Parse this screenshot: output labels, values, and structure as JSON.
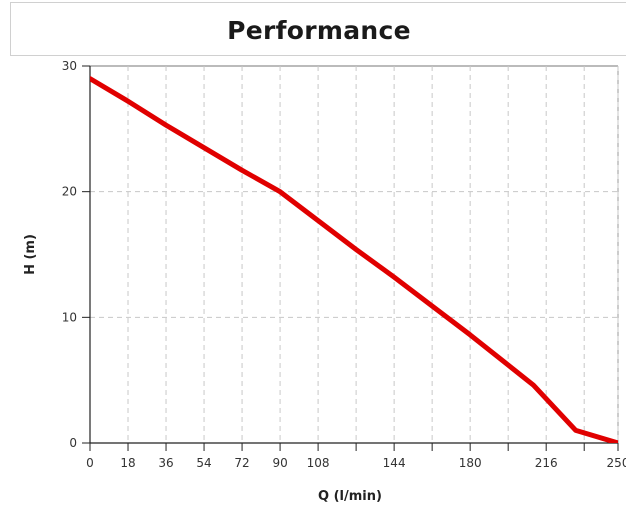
{
  "chart_data": {
    "type": "line",
    "title": "Performance",
    "xlabel": "Q (l/min)",
    "ylabel": "H (m)",
    "xlim": [
      0,
      250
    ],
    "ylim": [
      0,
      30
    ],
    "x_ticks": [
      0,
      18,
      36,
      54,
      72,
      90,
      108,
      126,
      144,
      162,
      180,
      198,
      216,
      234,
      250
    ],
    "x_tick_labels": [
      "0",
      "18",
      "36",
      "54",
      "72",
      "90",
      "108",
      "",
      "144",
      "",
      "180",
      "",
      "216",
      "",
      "250"
    ],
    "y_ticks": [
      0,
      10,
      20,
      30
    ],
    "y_tick_labels": [
      "0",
      "10",
      "20",
      "30"
    ],
    "grid": true,
    "series": [
      {
        "color": "#e00000",
        "x": [
          0,
          18,
          36,
          54,
          72,
          90,
          108,
          126,
          144,
          162,
          180,
          198,
          210,
          230,
          250
        ],
        "y": [
          29,
          27.2,
          25.3,
          23.5,
          21.7,
          20,
          17.7,
          15.4,
          13.2,
          10.9,
          8.6,
          6.2,
          4.6,
          1,
          0
        ]
      }
    ]
  }
}
